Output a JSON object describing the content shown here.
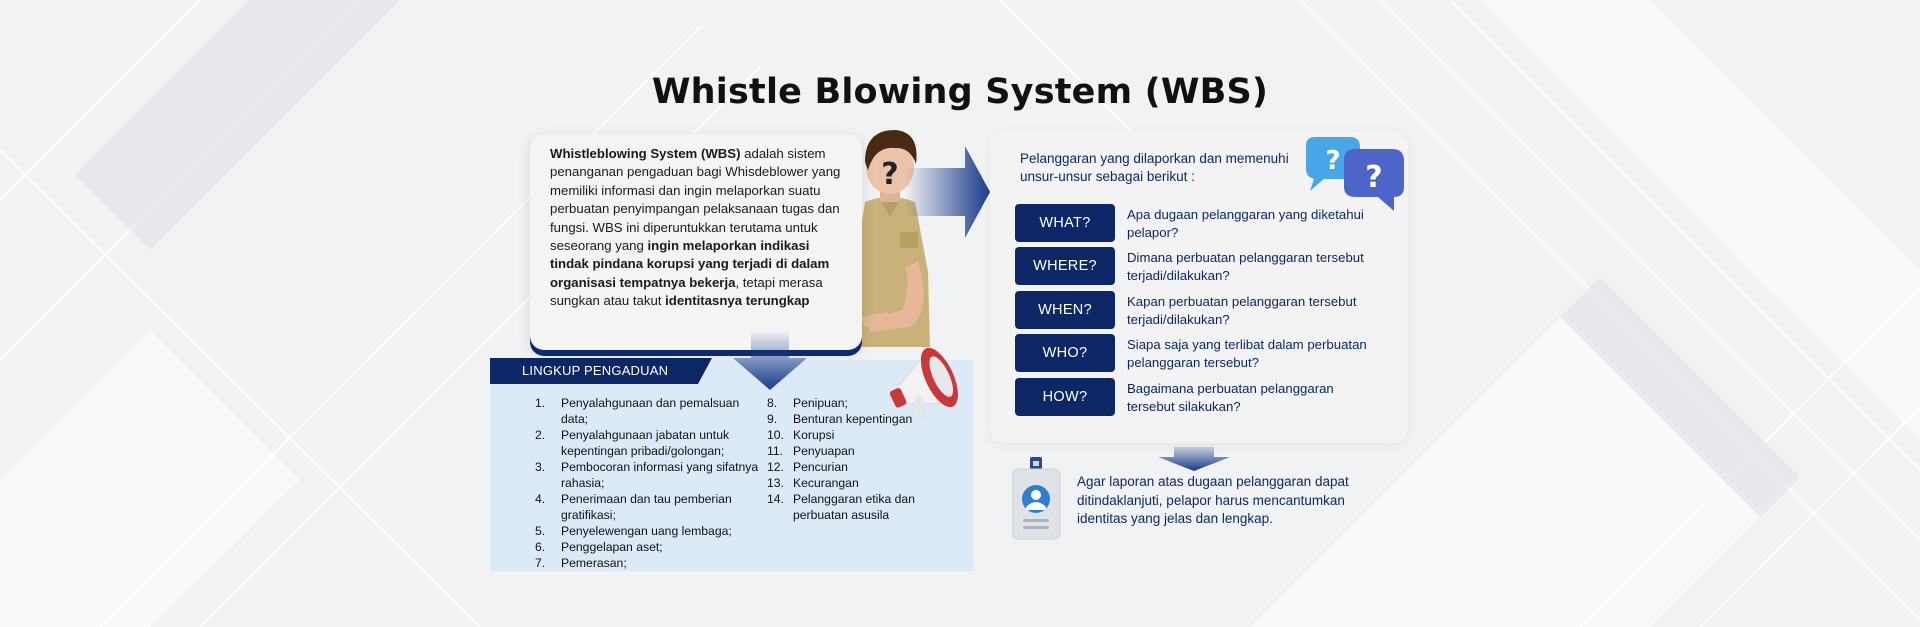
{
  "title": "Whistle Blowing System (WBS)",
  "definition": {
    "term": "Whistleblowing System (WBS)",
    "part1": " adalah sistem penanganan pengaduan bagi Whisdeblower yang memiliki informasi dan ingin melaporkan suatu perbuatan penyimpangan pelaksanaan tugas dan fungsi. WBS ini diperuntukkan terutama untuk seseorang yang ",
    "bold1": "ingin melaporkan indikasi tindak pindana korupsi yang terjadi di dalam organisasi tempatnya bekerja",
    "part2": ", tetapi merasa sungkan atau takut ",
    "bold2": "identitasnya terungkap"
  },
  "scope": {
    "header": "LINGKUP PENGADUAN",
    "left_items": [
      {
        "num": "1.",
        "text": "Penyalahgunaan dan pemalsuan data;"
      },
      {
        "num": "2.",
        "text": "Penyalahgunaan jabatan untuk kepentingan pribadi/golongan;"
      },
      {
        "num": "3.",
        "text": "Pembocoran informasi yang sifatnya rahasia;"
      },
      {
        "num": "4.",
        "text": "Penerimaan dan tau pemberian gratifikasi;"
      },
      {
        "num": "5.",
        "text": "Penyelewengan uang lembaga;"
      },
      {
        "num": "6.",
        "text": "Penggelapan aset;"
      },
      {
        "num": "7.",
        "text": "Pemerasan;"
      }
    ],
    "right_items": [
      {
        "num": "8.",
        "text": "Penipuan;"
      },
      {
        "num": "9.",
        "text": "Benturan kepentingan"
      },
      {
        "num": "10.",
        "text": "Korupsi"
      },
      {
        "num": "11.",
        "text": "Penyuapan"
      },
      {
        "num": "12.",
        "text": "Pencurian"
      },
      {
        "num": "13.",
        "text": "Kecurangan"
      },
      {
        "num": "14.",
        "text": "Pelanggaran etika dan perbuatan asusila"
      }
    ]
  },
  "criteria": {
    "intro": "Pelanggaran yang dilaporkan dan memenuhi unsur-unsur sebagai berikut :",
    "questions": [
      {
        "label": "WHAT?",
        "text": "Apa dugaan pelanggaran yang diketahui pelapor?"
      },
      {
        "label": "WHERE?",
        "text": "Dimana perbuatan pelanggaran tersebut terjadi/dilakukan?"
      },
      {
        "label": "WHEN?",
        "text": "Kapan perbuatan pelanggaran tersebut terjadi/dilakukan?"
      },
      {
        "label": "WHO?",
        "text": "Siapa saja yang terlibat dalam perbuatan pelanggaran tersebut?"
      },
      {
        "label": "HOW?",
        "text": "Bagaimana perbuatan pelanggaran tersebut silakukan?"
      }
    ]
  },
  "note": "Agar laporan atas dugaan pelanggaran dapat ditindaklanjuti, pelapor harus mencantumkan identitas yang jelas dan lengkap.",
  "icons": {
    "person": "anonymous-officer-icon",
    "question_mark": "?",
    "bubbles": "question-bubbles-icon",
    "megaphone": "megaphone-icon",
    "id_card": "id-card-icon"
  },
  "colors": {
    "navy": "#0d2766",
    "panel_blue": "#dce9f6",
    "card_gray": "#f3f3f3",
    "megaphone_red": "#c9383a",
    "bubble_blue": "#2f8fe0"
  }
}
